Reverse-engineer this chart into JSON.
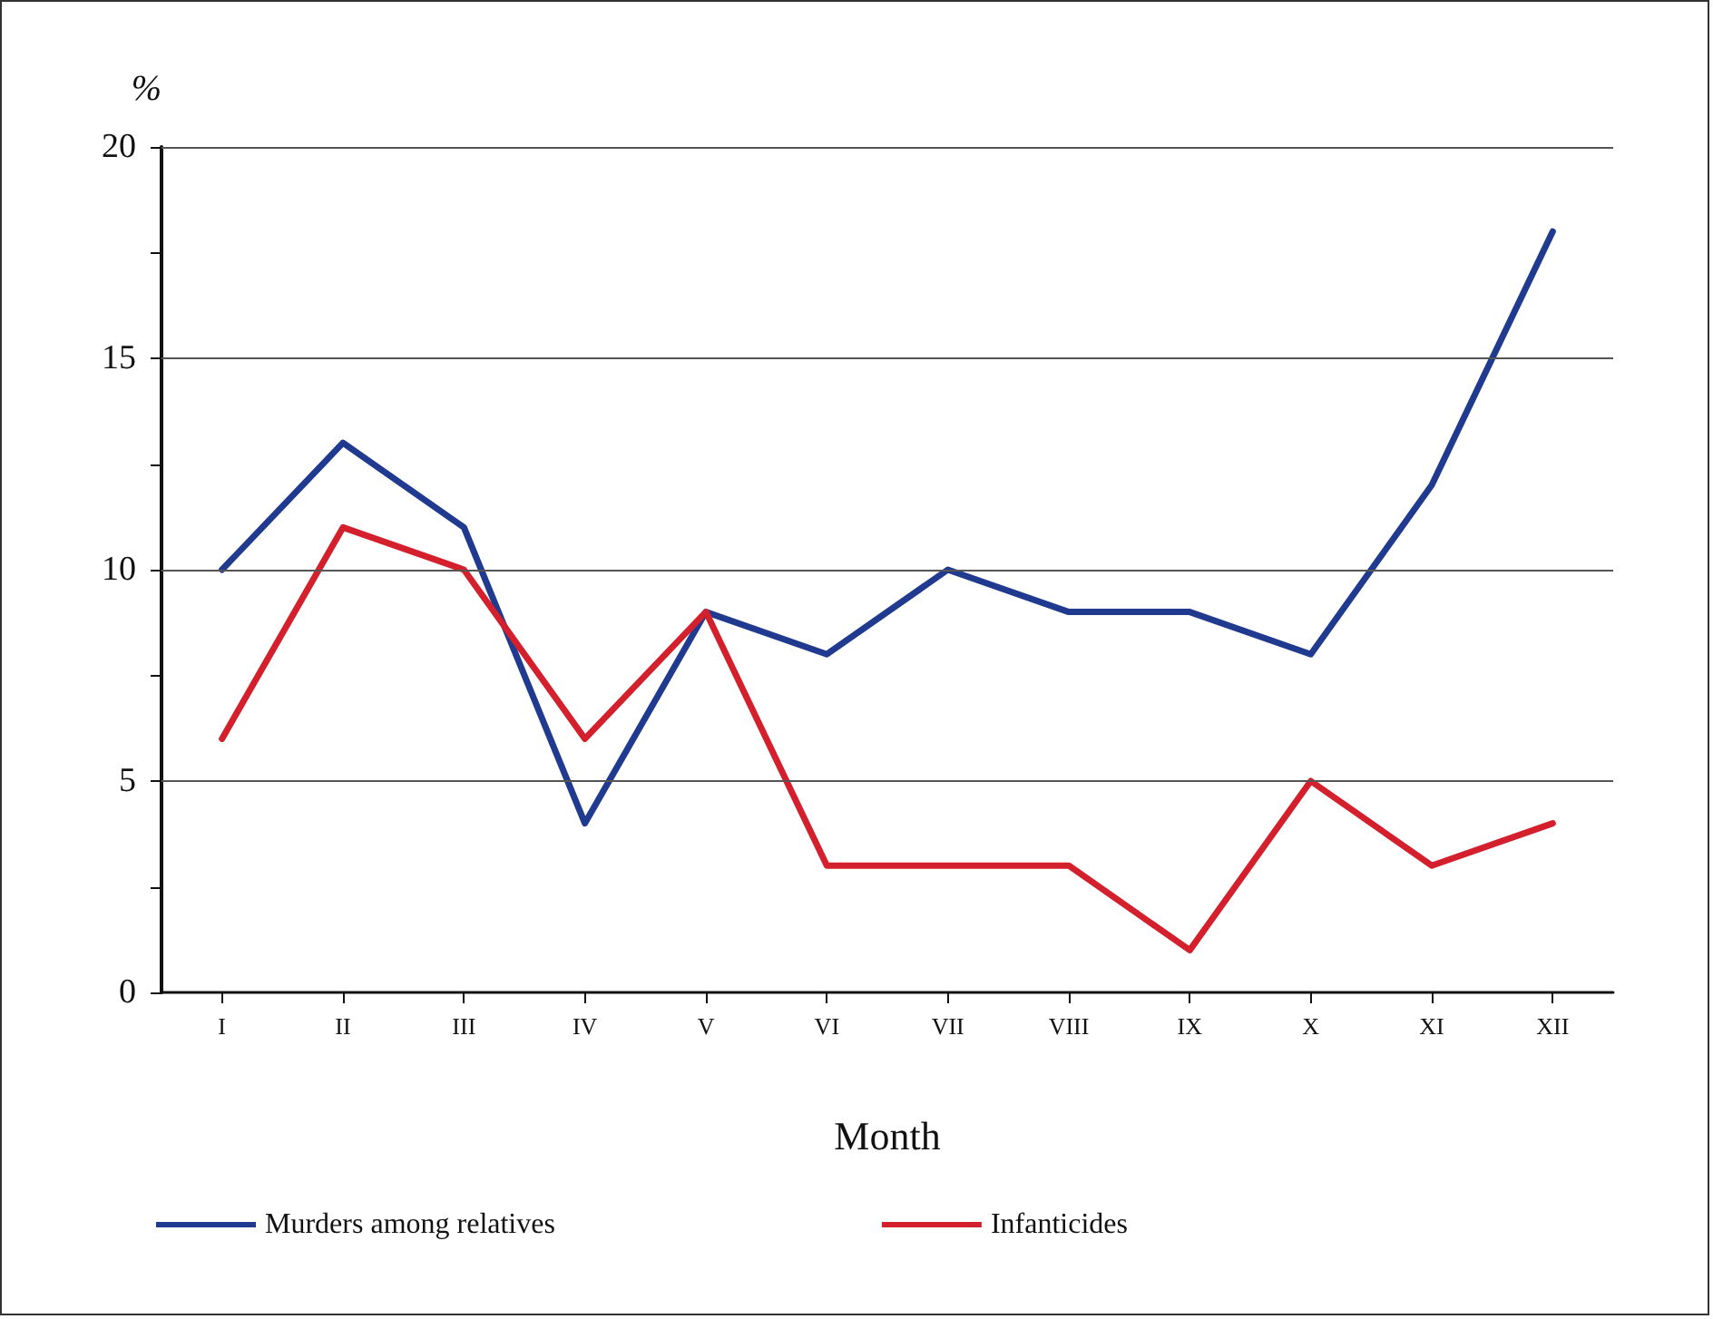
{
  "chart_data": {
    "type": "line",
    "xlabel": "Month",
    "ylabel": "%",
    "categories": [
      "I",
      "II",
      "III",
      "IV",
      "V",
      "VI",
      "VII",
      "VIII",
      "IX",
      "X",
      "XI",
      "XII"
    ],
    "series": [
      {
        "name": "Murders among relatives",
        "color": "#1f3a8f",
        "values": [
          10,
          13,
          11,
          4,
          9,
          8,
          10,
          9,
          9,
          8,
          12,
          18
        ]
      },
      {
        "name": "Infanticides",
        "color": "#d4202c",
        "values": [
          6,
          11,
          10,
          6,
          9,
          3,
          3,
          3,
          1,
          5,
          3,
          4
        ]
      }
    ],
    "ylim": [
      0,
      20
    ],
    "yticks": [
      0,
      {
        "value": 2.5,
        "label": null
      },
      5,
      {
        "value": 7.5,
        "label": null
      },
      10,
      {
        "value": 12.5,
        "label": null
      },
      15,
      {
        "value": 17.5,
        "label": null
      },
      20
    ],
    "grid": "y",
    "legend": "bottom",
    "marker": "none",
    "line_style": "solid"
  }
}
